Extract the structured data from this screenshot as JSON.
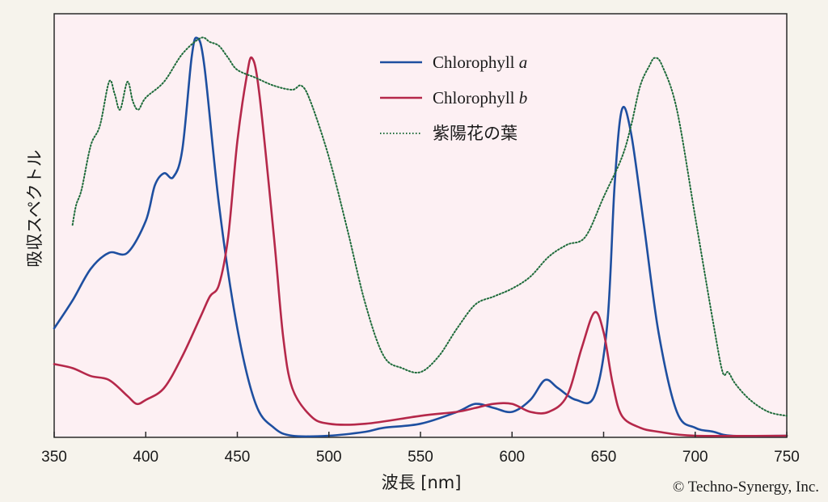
{
  "chart_data": {
    "type": "line",
    "xlabel": "波長 [nm]",
    "ylabel": "吸収スペクトル",
    "xlim": [
      350,
      750
    ],
    "ylim": [
      0,
      1
    ],
    "x_ticks": [
      350,
      400,
      450,
      500,
      550,
      600,
      650,
      700,
      750
    ],
    "grid": false,
    "legend_position": "top-center",
    "background": "#fdf0f3",
    "series": [
      {
        "name": "Chlorophyll a",
        "name_main": "Chlorophyll ",
        "name_suffix": "a",
        "color": "#1e4fa0",
        "style": "solid",
        "x": [
          350,
          360,
          370,
          380,
          390,
          400,
          405,
          410,
          415,
          420,
          425,
          428,
          432,
          440,
          450,
          460,
          470,
          480,
          500,
          520,
          530,
          550,
          570,
          580,
          590,
          600,
          610,
          618,
          625,
          635,
          645,
          652,
          656,
          660,
          665,
          672,
          680,
          690,
          700,
          710,
          720,
          750
        ],
        "y": [
          0.27,
          0.34,
          0.42,
          0.46,
          0.46,
          0.54,
          0.63,
          0.66,
          0.65,
          0.72,
          0.95,
          1.0,
          0.93,
          0.58,
          0.27,
          0.08,
          0.02,
          0.0,
          0.0,
          0.01,
          0.02,
          0.03,
          0.06,
          0.08,
          0.07,
          0.06,
          0.09,
          0.14,
          0.12,
          0.09,
          0.1,
          0.28,
          0.63,
          0.82,
          0.76,
          0.53,
          0.26,
          0.06,
          0.02,
          0.01,
          0.0,
          0.0
        ]
      },
      {
        "name": "Chlorophyll b",
        "name_main": "Chlorophyll ",
        "name_suffix": "b",
        "color": "#b5284a",
        "style": "solid",
        "x": [
          350,
          360,
          370,
          380,
          390,
          395,
          400,
          410,
          420,
          430,
          435,
          440,
          445,
          450,
          455,
          458,
          462,
          470,
          475,
          480,
          490,
          500,
          520,
          550,
          570,
          580,
          590,
          600,
          610,
          620,
          630,
          638,
          645,
          650,
          655,
          660,
          670,
          680,
          700,
          750
        ],
        "y": [
          0.18,
          0.17,
          0.15,
          0.14,
          0.1,
          0.08,
          0.09,
          0.12,
          0.2,
          0.3,
          0.35,
          0.38,
          0.5,
          0.74,
          0.9,
          0.95,
          0.86,
          0.5,
          0.25,
          0.12,
          0.05,
          0.03,
          0.03,
          0.05,
          0.06,
          0.07,
          0.08,
          0.08,
          0.06,
          0.06,
          0.1,
          0.22,
          0.31,
          0.26,
          0.13,
          0.05,
          0.02,
          0.01,
          0.0,
          0.0
        ]
      },
      {
        "name": "紫陽花の葉",
        "name_main": "紫陽花の葉",
        "name_suffix": "",
        "color": "#1e6b3a",
        "style": "dotted",
        "x": [
          360,
          362,
          365,
          370,
          375,
          380,
          383,
          386,
          390,
          393,
          396,
          400,
          410,
          420,
          430,
          435,
          440,
          445,
          450,
          460,
          470,
          480,
          485,
          490,
          500,
          510,
          520,
          530,
          540,
          550,
          560,
          570,
          580,
          590,
          600,
          610,
          620,
          630,
          640,
          650,
          660,
          665,
          670,
          675,
          678,
          682,
          690,
          700,
          710,
          715,
          718,
          722,
          730,
          740,
          750
        ],
        "y": [
          0.53,
          0.58,
          0.62,
          0.73,
          0.78,
          0.89,
          0.86,
          0.82,
          0.89,
          0.84,
          0.82,
          0.85,
          0.89,
          0.96,
          1.0,
          0.99,
          0.98,
          0.95,
          0.92,
          0.9,
          0.88,
          0.87,
          0.88,
          0.84,
          0.7,
          0.52,
          0.33,
          0.2,
          0.17,
          0.16,
          0.2,
          0.27,
          0.33,
          0.35,
          0.37,
          0.4,
          0.45,
          0.48,
          0.5,
          0.6,
          0.7,
          0.78,
          0.88,
          0.93,
          0.95,
          0.93,
          0.82,
          0.55,
          0.28,
          0.16,
          0.16,
          0.13,
          0.09,
          0.06,
          0.05
        ]
      }
    ]
  },
  "copyright": "© Techno-Synergy, Inc."
}
